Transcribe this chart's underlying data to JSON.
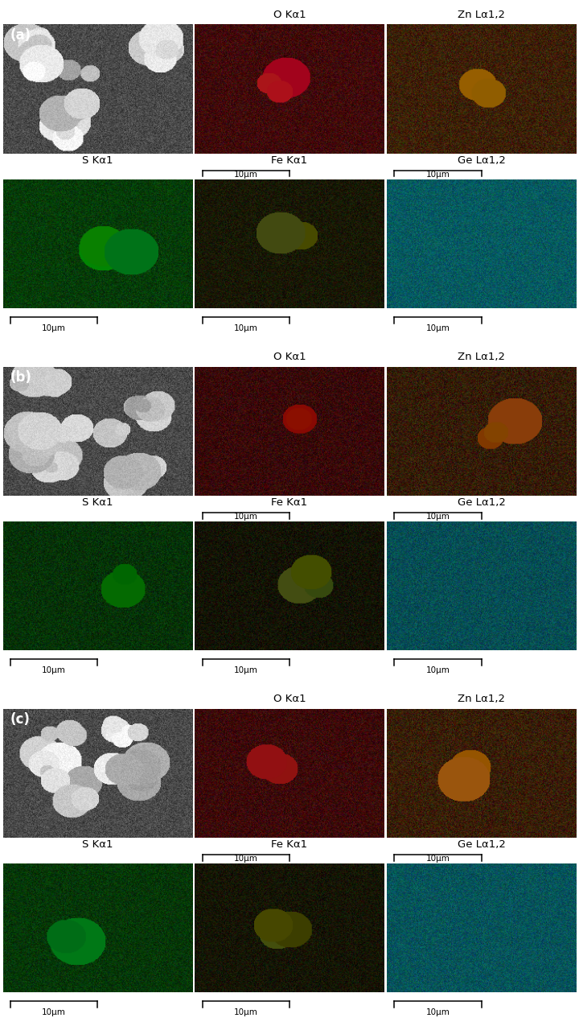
{
  "figure_width": 7.2,
  "figure_height": 12.7,
  "dpi": 100,
  "bg": "#ffffff",
  "scalebar": "10μm",
  "sections": [
    "(a)",
    "(b)",
    "(c)"
  ],
  "row0_labels": [
    "",
    "O Kα1",
    "Zn Lα1,2"
  ],
  "row1_labels": [
    "S Kα1",
    "Fe Kα1",
    "Ge Lα1,2"
  ],
  "label_fontsize": 9.5,
  "section_label_fontsize": 12,
  "scalebar_fontsize": 7.5,
  "eds_colors_a": {
    "O": [
      160,
      15,
      15
    ],
    "Zn": [
      150,
      80,
      5
    ],
    "S": [
      0,
      120,
      10
    ],
    "Fe": [
      80,
      80,
      5
    ],
    "Ge": [
      0,
      150,
      160
    ]
  },
  "eds_colors_b": {
    "O": [
      140,
      12,
      12
    ],
    "Zn": [
      130,
      70,
      5
    ],
    "S": [
      0,
      100,
      8
    ],
    "Fe": [
      65,
      65,
      4
    ],
    "Ge": [
      0,
      130,
      140
    ]
  },
  "eds_colors_c": {
    "O": [
      150,
      13,
      13
    ],
    "Zn": [
      140,
      75,
      5
    ],
    "S": [
      0,
      110,
      9
    ],
    "Fe": [
      72,
      72,
      4
    ],
    "Ge": [
      0,
      140,
      150
    ]
  },
  "noise_scale": 22,
  "sem_base_a": 90,
  "sem_base_b": 70,
  "sem_base_c": 88
}
